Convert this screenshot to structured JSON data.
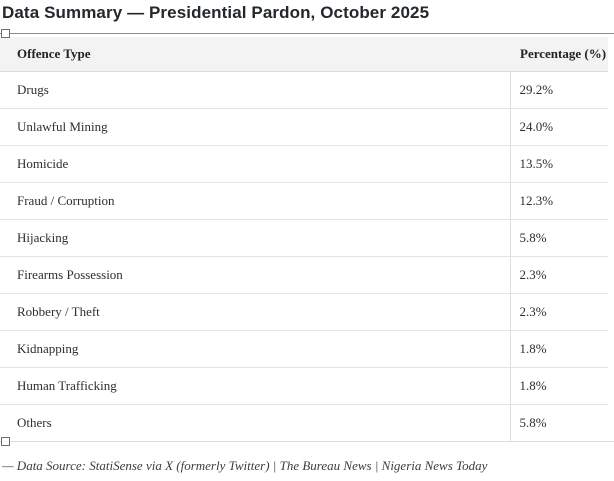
{
  "page": {
    "title": "Data Summary — Presidential Pardon, October 2025",
    "caption": "— Data Source: StatiSense via X (formerly Twitter) | The Bureau News | Nigeria News Today"
  },
  "table": {
    "columns": [
      "Offence Type",
      "Percentage (%)"
    ],
    "rows": [
      {
        "offence": "Drugs",
        "percentage": "29.2%"
      },
      {
        "offence": "Unlawful Mining",
        "percentage": "24.0%"
      },
      {
        "offence": "Homicide",
        "percentage": "13.5%"
      },
      {
        "offence": "Fraud / Corruption",
        "percentage": "12.3%"
      },
      {
        "offence": "Hijacking",
        "percentage": "5.8%"
      },
      {
        "offence": "Firearms Possession",
        "percentage": "2.3%"
      },
      {
        "offence": "Robbery / Theft",
        "percentage": "2.3%"
      },
      {
        "offence": "Kidnapping",
        "percentage": "1.8%"
      },
      {
        "offence": "Human Trafficking",
        "percentage": "1.8%"
      },
      {
        "offence": "Others",
        "percentage": "5.8%"
      }
    ]
  },
  "chart_data": {
    "type": "table",
    "title": "Data Summary — Presidential Pardon, October 2025",
    "columns": [
      "Offence Type",
      "Percentage (%)"
    ],
    "categories": [
      "Drugs",
      "Unlawful Mining",
      "Homicide",
      "Fraud / Corruption",
      "Hijacking",
      "Firearms Possession",
      "Robbery / Theft",
      "Kidnapping",
      "Human Trafficking",
      "Others"
    ],
    "values": [
      29.2,
      24.0,
      13.5,
      12.3,
      5.8,
      2.3,
      2.3,
      1.8,
      1.8,
      5.8
    ],
    "source_note": "— Data Source: StatiSense via X (formerly Twitter) | The Bureau News | Nigeria News Today"
  },
  "colors": {
    "title_text": "#23282d",
    "header_background": "#f3f3f4",
    "header_text": "#222222",
    "cell_text": "#2e2e2e",
    "row_separator": "#e4e4e4",
    "outer_border_top": "#8d8d8d",
    "outer_border_bottom": "#dcdcdc",
    "handle_border": "#6e6e6e",
    "caption_text": "#3c3c3c"
  }
}
